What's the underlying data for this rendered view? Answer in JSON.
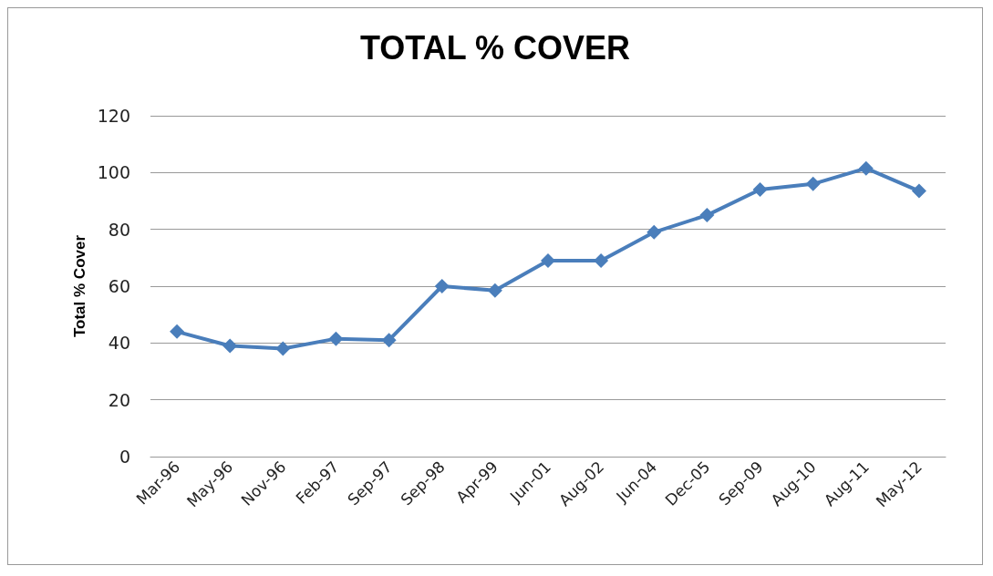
{
  "chart_data": {
    "type": "line",
    "title": "TOTAL % COVER",
    "ylabel": "Total % Cover",
    "categories": [
      "Mar-96",
      "May-96",
      "Nov-96",
      "Feb-97",
      "Sep-97",
      "Sep-98",
      "Apr-99",
      "Jun-01",
      "Aug-02",
      "Jun-04",
      "Dec-05",
      "Sep-09",
      "Aug-10",
      "Aug-11",
      "May-12"
    ],
    "series": [
      {
        "color": "#4a7ebb",
        "values": [
          44,
          39,
          38,
          41.5,
          41,
          60,
          58.5,
          69,
          69,
          79,
          85,
          94,
          96,
          101.5,
          93.5
        ]
      }
    ],
    "ylim": [
      0,
      120
    ],
    "yticks": [
      0,
      20,
      40,
      60,
      80,
      100,
      120
    ],
    "grid": "y",
    "marker": "diamond",
    "line_style": "solid"
  }
}
